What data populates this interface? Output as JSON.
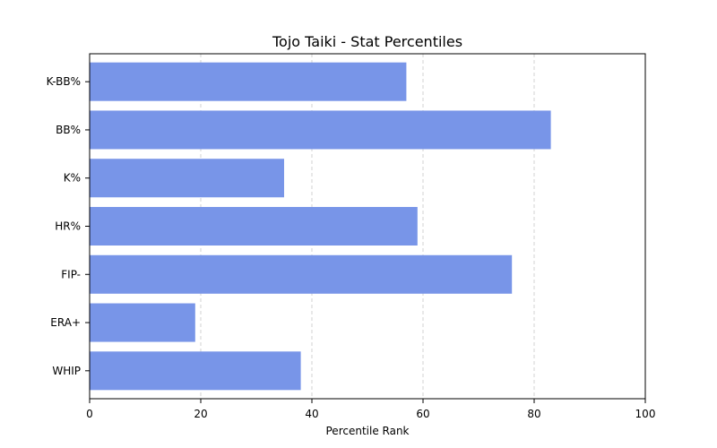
{
  "chart_data": {
    "type": "bar",
    "orientation": "horizontal",
    "title": "Tojo Taiki - Stat Percentiles",
    "xlabel": "Percentile Rank",
    "ylabel": "",
    "categories": [
      "K-BB%",
      "BB%",
      "K%",
      "HR%",
      "FIP-",
      "ERA+",
      "WHIP"
    ],
    "values": [
      57,
      83,
      35,
      59,
      76,
      19,
      38
    ],
    "xlim": [
      0,
      100
    ],
    "xticks": [
      0,
      20,
      40,
      60,
      80,
      100
    ],
    "grid": "vertical-dashed",
    "bar_color": "#7895E8",
    "grid_color": "#C8C8C8"
  }
}
